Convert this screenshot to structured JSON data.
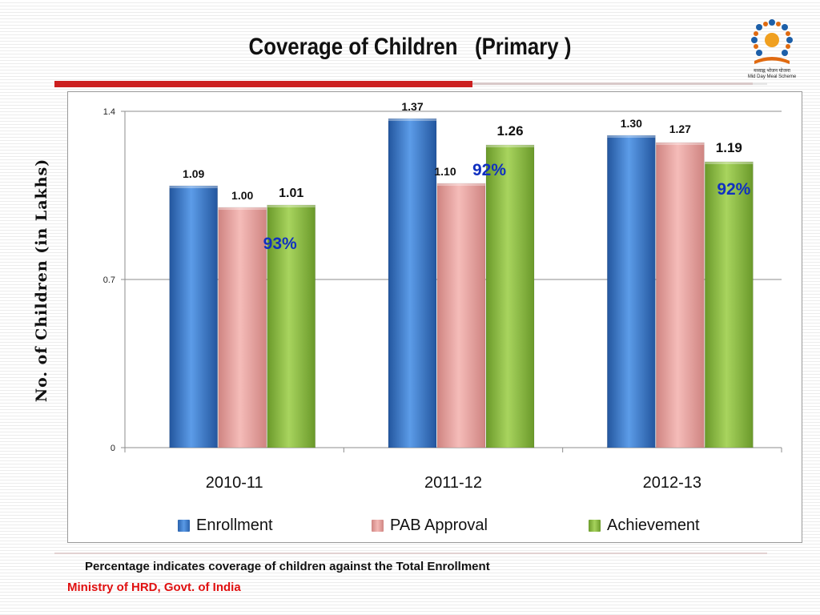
{
  "slide": {
    "title": "Coverage of Children   (Primary )",
    "logo_text": "मध्याह्न भोजन योजना",
    "logo_subtext": "Mid Day Meal Scheme",
    "note": "Percentage indicates coverage of children against the Total Enrollment",
    "source": "Ministry of HRD, Govt. of India"
  },
  "colors": {
    "enrollment": "#3f7fd0",
    "pab_approval": "#e8a3a0",
    "achievement": "#8dbd45",
    "percent_text": "#1030c0",
    "source_text": "#e01010",
    "accent_rule": "#cc1f1f"
  },
  "chart_data": {
    "type": "bar",
    "title": "Coverage of Children   (Primary )",
    "ylabel": "No. of Children (in Lakhs)",
    "xlabel": "",
    "categories": [
      "2010-11",
      "2011-12",
      "2012-13"
    ],
    "series": [
      {
        "name": "Enrollment",
        "values": [
          1.09,
          1.37,
          1.3
        ],
        "labels": [
          "1.09",
          "1.37",
          "1.30"
        ]
      },
      {
        "name": "PAB Approval",
        "values": [
          1.0,
          1.1,
          1.27
        ],
        "labels": [
          "1.00",
          "1.10",
          "1.27"
        ]
      },
      {
        "name": "Achievement",
        "values": [
          1.01,
          1.26,
          1.19
        ],
        "labels": [
          "1.01",
          "1.26",
          "1.19"
        ]
      }
    ],
    "percent_annotations": [
      "93%",
      "92%",
      "92%"
    ],
    "ylim": [
      0,
      1.4
    ],
    "yticks": [
      0,
      0.7,
      1.4
    ],
    "ytick_labels": [
      "0",
      "0.7",
      "1.4"
    ],
    "grid": true,
    "legend_position": "bottom"
  }
}
